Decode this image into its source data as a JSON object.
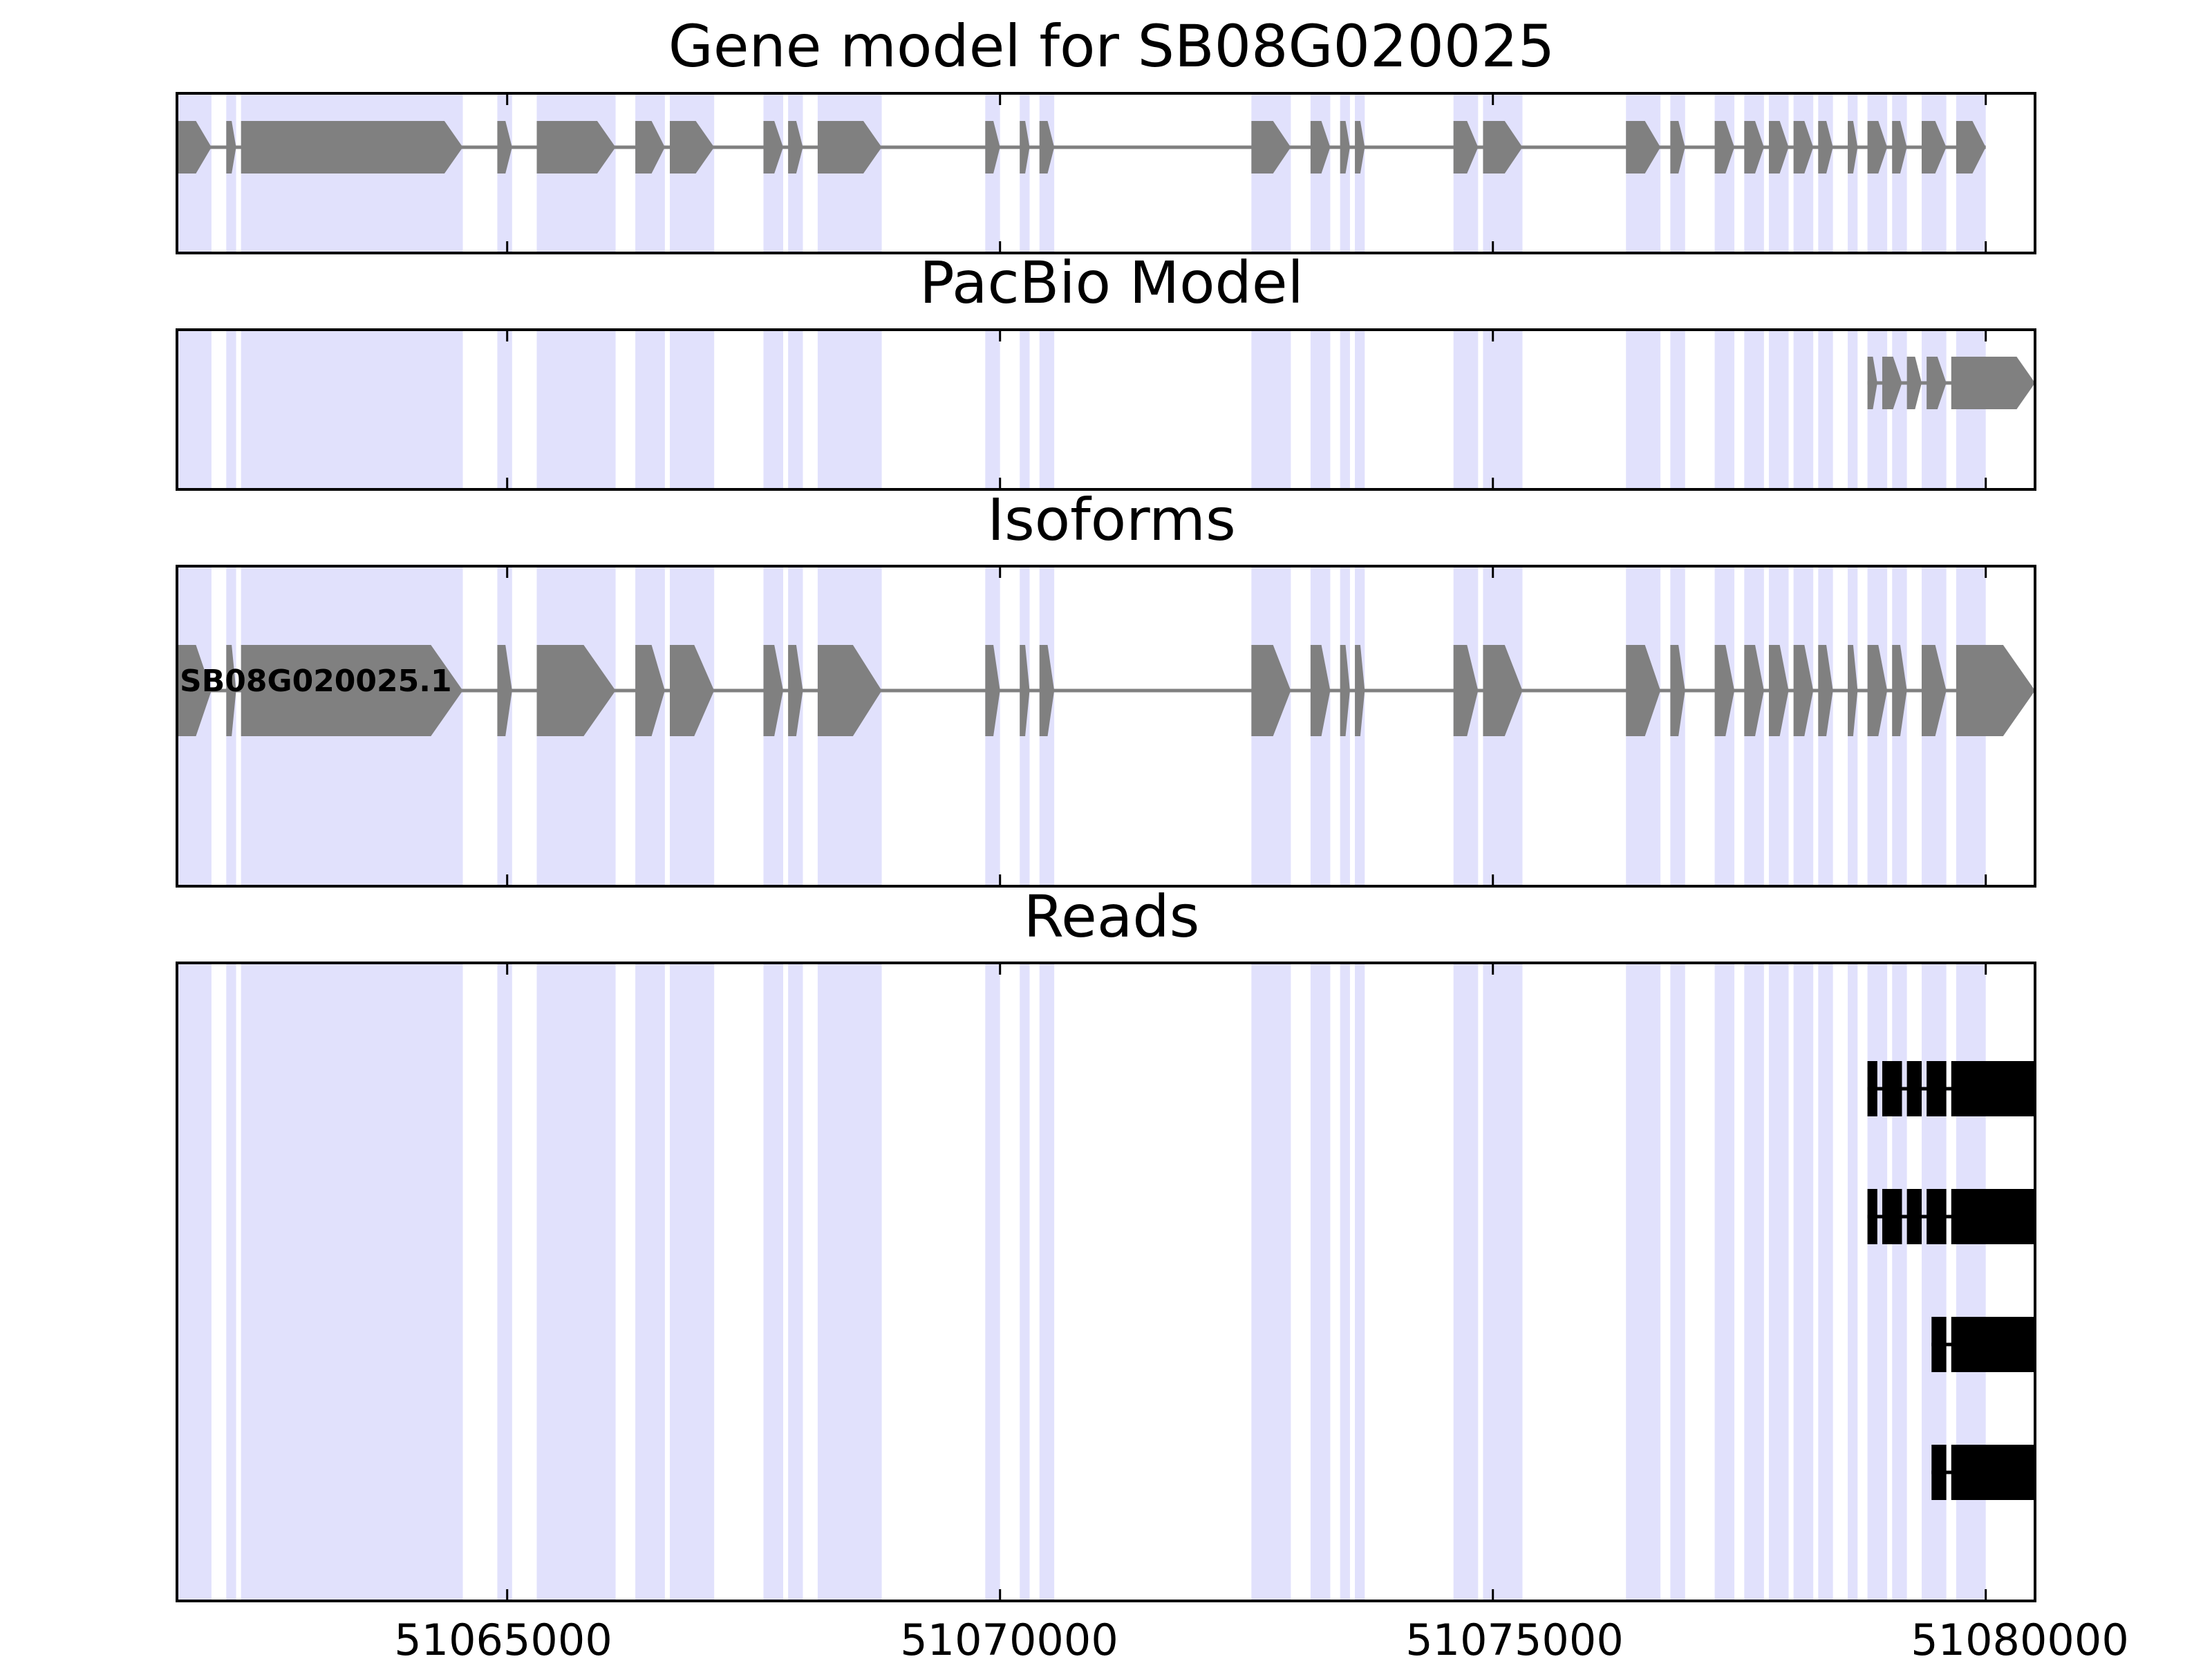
{
  "chart_data": {
    "type": "gene-track",
    "xlim": [
      51061650,
      51080500
    ],
    "x_ticks": [
      51065000,
      51070000,
      51075000,
      51080000
    ],
    "x_tick_labels": [
      "51065000",
      "51070000",
      "51075000",
      "51080000"
    ],
    "colors": {
      "exon_shade": "#e1e1fc",
      "gene_feature": "#808080",
      "read_feature": "#000000",
      "axes": "#000000",
      "background": "#ffffff"
    },
    "shaded_exon_regions": [
      [
        51061650,
        51062000
      ],
      [
        51062150,
        51062250
      ],
      [
        51062300,
        51064550
      ],
      [
        51064900,
        51065050
      ],
      [
        51065300,
        51066100
      ],
      [
        51066300,
        51066600
      ],
      [
        51066650,
        51067100
      ],
      [
        51067600,
        51067800
      ],
      [
        51067850,
        51068000
      ],
      [
        51068150,
        51068800
      ],
      [
        51069850,
        51070000
      ],
      [
        51070200,
        51070300
      ],
      [
        51070400,
        51070550
      ],
      [
        51072550,
        51072950
      ],
      [
        51073150,
        51073350
      ],
      [
        51073450,
        51073550
      ],
      [
        51073600,
        51073700
      ],
      [
        51074600,
        51074850
      ],
      [
        51074900,
        51075300
      ],
      [
        51076350,
        51076700
      ],
      [
        51076800,
        51076950
      ],
      [
        51077250,
        51077450
      ],
      [
        51077550,
        51077750
      ],
      [
        51077800,
        51078000
      ],
      [
        51078050,
        51078250
      ],
      [
        51078300,
        51078450
      ],
      [
        51078600,
        51078700
      ],
      [
        51078800,
        51079000
      ],
      [
        51079050,
        51079200
      ],
      [
        51079350,
        51079600
      ],
      [
        51079700,
        51080000
      ]
    ],
    "panels": [
      {
        "title": "Gene model for SB08G020025",
        "kind": "gene",
        "tracks": [
          {
            "label": "",
            "features": [
              [
                51061650,
                51062000
              ],
              [
                51062150,
                51062250
              ],
              [
                51062300,
                51064550
              ],
              [
                51064900,
                51065050
              ],
              [
                51065300,
                51066100
              ],
              [
                51066300,
                51066600
              ],
              [
                51066650,
                51067100
              ],
              [
                51067600,
                51067800
              ],
              [
                51067850,
                51068000
              ],
              [
                51068150,
                51068800
              ],
              [
                51069850,
                51070000
              ],
              [
                51070200,
                51070300
              ],
              [
                51070400,
                51070550
              ],
              [
                51072550,
                51072950
              ],
              [
                51073150,
                51073350
              ],
              [
                51073450,
                51073550
              ],
              [
                51073600,
                51073700
              ],
              [
                51074600,
                51074850
              ],
              [
                51074900,
                51075300
              ],
              [
                51076350,
                51076700
              ],
              [
                51076800,
                51076950
              ],
              [
                51077250,
                51077450
              ],
              [
                51077550,
                51077750
              ],
              [
                51077800,
                51078000
              ],
              [
                51078050,
                51078250
              ],
              [
                51078300,
                51078450
              ],
              [
                51078600,
                51078700
              ],
              [
                51078800,
                51079000
              ],
              [
                51079050,
                51079200
              ],
              [
                51079350,
                51079600
              ],
              [
                51079700,
                51080000
              ]
            ]
          }
        ]
      },
      {
        "title": "PacBio Model",
        "kind": "gene",
        "tracks": [
          {
            "label": "",
            "features": [
              [
                51078800,
                51078900
              ],
              [
                51078950,
                51079150
              ],
              [
                51079200,
                51079350
              ],
              [
                51079400,
                51079600
              ],
              [
                51079650,
                51080500
              ]
            ]
          }
        ]
      },
      {
        "title": "Isoforms",
        "kind": "gene",
        "tracks": [
          {
            "label": "SB08G020025.1",
            "features": [
              [
                51061650,
                51062000
              ],
              [
                51062150,
                51062250
              ],
              [
                51062300,
                51064550
              ],
              [
                51064900,
                51065050
              ],
              [
                51065300,
                51066100
              ],
              [
                51066300,
                51066600
              ],
              [
                51066650,
                51067100
              ],
              [
                51067600,
                51067800
              ],
              [
                51067850,
                51068000
              ],
              [
                51068150,
                51068800
              ],
              [
                51069850,
                51070000
              ],
              [
                51070200,
                51070300
              ],
              [
                51070400,
                51070550
              ],
              [
                51072550,
                51072950
              ],
              [
                51073150,
                51073350
              ],
              [
                51073450,
                51073550
              ],
              [
                51073600,
                51073700
              ],
              [
                51074600,
                51074850
              ],
              [
                51074900,
                51075300
              ],
              [
                51076350,
                51076700
              ],
              [
                51076800,
                51076950
              ],
              [
                51077250,
                51077450
              ],
              [
                51077550,
                51077750
              ],
              [
                51077800,
                51078000
              ],
              [
                51078050,
                51078250
              ],
              [
                51078300,
                51078450
              ],
              [
                51078600,
                51078700
              ],
              [
                51078800,
                51079000
              ],
              [
                51079050,
                51079200
              ],
              [
                51079350,
                51079600
              ],
              [
                51079700,
                51080500
              ]
            ]
          }
        ]
      },
      {
        "title": "Reads",
        "kind": "reads",
        "tracks": [
          {
            "label": "",
            "features": [
              [
                51078800,
                51078900
              ],
              [
                51078950,
                51079150
              ],
              [
                51079200,
                51079350
              ],
              [
                51079400,
                51079600
              ],
              [
                51079650,
                51080500
              ]
            ]
          },
          {
            "label": "",
            "features": [
              [
                51078800,
                51078900
              ],
              [
                51078950,
                51079150
              ],
              [
                51079200,
                51079350
              ],
              [
                51079400,
                51079600
              ],
              [
                51079650,
                51080500
              ]
            ]
          },
          {
            "label": "",
            "features": [
              [
                51079450,
                51079600
              ],
              [
                51079650,
                51080500
              ]
            ]
          },
          {
            "label": "",
            "features": [
              [
                51079450,
                51079600
              ],
              [
                51079650,
                51080500
              ]
            ]
          }
        ]
      }
    ]
  }
}
